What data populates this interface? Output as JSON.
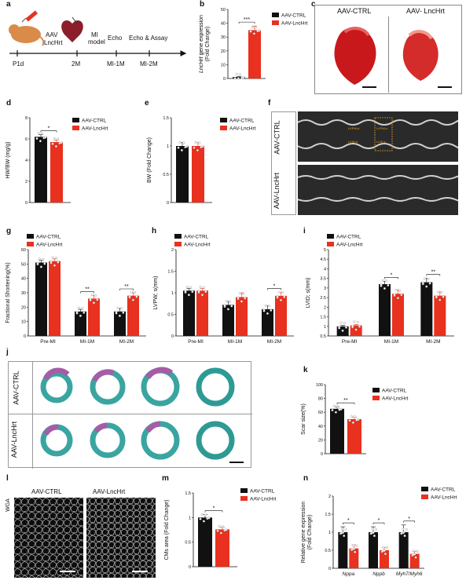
{
  "panel_letters": [
    "a",
    "b",
    "c",
    "d",
    "e",
    "f",
    "g",
    "h",
    "i",
    "j",
    "k",
    "l",
    "m",
    "n"
  ],
  "panel_a": {
    "labels": [
      "AAV",
      "LncHrt",
      "MI",
      "model",
      "Echo",
      "Echo & Assay",
      "P1d",
      "2M",
      "MI-1M",
      "MI-2M"
    ]
  },
  "panel_c": {
    "left": "AAV-CTRL",
    "right": "AAV- LncHrt"
  },
  "panel_f": {
    "top": "AAV-CTRL",
    "bottom": "AAV-LncHrt",
    "annot": [
      "LVPW;d",
      "LVID;d",
      "LVPW;s",
      "LVID;s"
    ]
  },
  "panel_j": {
    "top": "AAV-CTRL",
    "bottom": "AAV-LncHrt"
  },
  "panel_l": {
    "stain": "WGA",
    "left": "AAV-CTRL",
    "right": "AAV-LncHrt"
  },
  "legend": {
    "ctrl": "AAV-CTRL",
    "lnc": "AAV-LncHrt"
  },
  "colors": {
    "ctrl": "#111111",
    "lnc": "#e8311f"
  },
  "chart_data": [
    {
      "panel": "b",
      "type": "bar",
      "ylabel_italic": "LncHrt",
      "ylabel_rest": " gene expression",
      "ylabel2": "(Fold Change)",
      "yticks": [
        0,
        10,
        20,
        30,
        40,
        50
      ],
      "ylim": [
        0,
        50
      ],
      "categories": [
        "AAV-CTRL",
        "AAV-LncHrt"
      ],
      "values": [
        1,
        35
      ],
      "errors": [
        0.5,
        3
      ],
      "sig": [
        "***"
      ]
    },
    {
      "panel": "d",
      "type": "bar",
      "ylabel": "HW/BW (mg/g)",
      "yticks": [
        0,
        2,
        4,
        6,
        8
      ],
      "ylim": [
        0,
        8
      ],
      "categories": [
        "AAV-CTRL",
        "AAV-LncHrt"
      ],
      "values": [
        6.2,
        5.7
      ],
      "errors": [
        0.2,
        0.2
      ],
      "sig": [
        "*"
      ]
    },
    {
      "panel": "e",
      "type": "bar",
      "ylabel": "BW (Fold Change)",
      "yticks": [
        0.0,
        0.5,
        1.0,
        1.5
      ],
      "ylim": [
        0,
        1.5
      ],
      "categories": [
        "AAV-CTRL",
        "AAV-LncHrt"
      ],
      "values": [
        1.0,
        1.0
      ],
      "errors": [
        0.06,
        0.06
      ],
      "sig": []
    },
    {
      "panel": "g",
      "type": "bar",
      "ylabel": "Fractional Shortening(%)",
      "yticks": [
        0,
        10,
        20,
        30,
        40,
        50,
        60
      ],
      "ylim": [
        0,
        60
      ],
      "categories": [
        "Pre-MI",
        "MI-1M",
        "MI-2M"
      ],
      "series": [
        {
          "name": "AAV-CTRL",
          "values": [
            51,
            17,
            17
          ],
          "errors": [
            1.5,
            1.5,
            2
          ]
        },
        {
          "name": "AAV-LncHrt",
          "values": [
            52,
            26,
            28
          ],
          "errors": [
            1.5,
            2,
            2
          ]
        }
      ],
      "sig": [
        "",
        "**",
        "**"
      ]
    },
    {
      "panel": "h",
      "type": "bar",
      "ylabel": "LVPW; s(mm)",
      "yticks": [
        0.0,
        0.5,
        1.0,
        1.5,
        2.0
      ],
      "ylim": [
        0,
        2.0
      ],
      "categories": [
        "Pre-MI",
        "MI-1M",
        "MI-2M"
      ],
      "series": [
        {
          "name": "AAV-CTRL",
          "values": [
            1.05,
            0.72,
            0.62
          ],
          "errors": [
            0.05,
            0.08,
            0.08
          ]
        },
        {
          "name": "AAV-LncHrt",
          "values": [
            1.05,
            0.9,
            0.93
          ],
          "errors": [
            0.05,
            0.1,
            0.08
          ]
        }
      ],
      "sig": [
        "",
        "",
        "*"
      ]
    },
    {
      "panel": "i",
      "type": "bar",
      "ylabel": "LVID; s(mm)",
      "yticks": [
        0.5,
        1.0,
        1.5,
        2.0,
        2.5,
        3.0,
        3.5,
        4.0,
        4.5,
        5.0
      ],
      "ylim": [
        0.5,
        5.0
      ],
      "categories": [
        "Pre-MI",
        "MI-1M",
        "MI-2M"
      ],
      "series": [
        {
          "name": "AAV-CTRL",
          "values": [
            1.0,
            3.2,
            3.3
          ],
          "errors": [
            0.05,
            0.15,
            0.2
          ]
        },
        {
          "name": "AAV-LncHrt",
          "values": [
            1.05,
            2.7,
            2.6
          ],
          "errors": [
            0.05,
            0.2,
            0.2
          ]
        }
      ],
      "sig": [
        "",
        "*",
        "**"
      ]
    },
    {
      "panel": "k",
      "type": "bar",
      "ylabel": "Scar size(%)",
      "yticks": [
        0,
        20,
        40,
        60,
        80,
        100
      ],
      "ylim": [
        0,
        100
      ],
      "categories": [
        "AAV-CTRL",
        "AAV-LncHrt"
      ],
      "values": [
        65,
        50
      ],
      "errors": [
        3,
        3
      ],
      "sig": [
        "**"
      ]
    },
    {
      "panel": "m",
      "type": "bar",
      "ylabel": "CMs area (Fold Change)",
      "yticks": [
        0.0,
        0.5,
        1.0,
        1.5
      ],
      "ylim": [
        0,
        1.5
      ],
      "categories": [
        "AAV-CTRL",
        "AAV-LncHrt"
      ],
      "values": [
        1.0,
        0.76
      ],
      "errors": [
        0.06,
        0.04
      ],
      "sig": [
        "*"
      ]
    },
    {
      "panel": "n",
      "type": "bar",
      "ylabel": "Relative gene expression",
      "ylabel2": "(Fold Change)",
      "yticks": [
        0.0,
        0.5,
        1.0,
        1.5,
        2.0
      ],
      "ylim": [
        0,
        2.0
      ],
      "categories": [
        "Nppa",
        "Nppb",
        "Myh7/Myh6"
      ],
      "series": [
        {
          "name": "AAV-CTRL",
          "values": [
            1.0,
            1.0,
            1.0
          ],
          "errors": [
            0.15,
            0.15,
            0.2
          ]
        },
        {
          "name": "AAV-LncHrt",
          "values": [
            0.55,
            0.5,
            0.4
          ],
          "errors": [
            0.1,
            0.08,
            0.06
          ]
        }
      ],
      "sig": [
        "*",
        "*",
        "*"
      ]
    }
  ]
}
